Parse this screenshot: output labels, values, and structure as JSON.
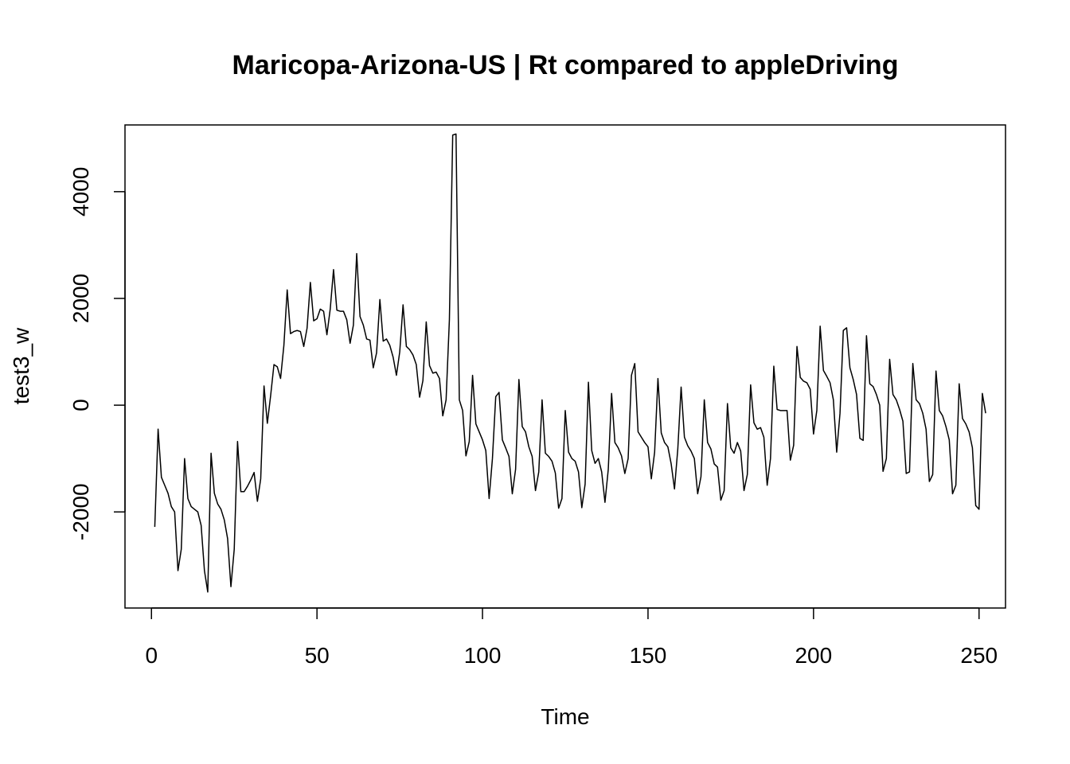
{
  "chart_data": {
    "type": "line",
    "title": "Maricopa-Arizona-US | Rt compared to appleDriving",
    "xlabel": "Time",
    "ylabel": "test3_w",
    "xlim": [
      -8,
      258
    ],
    "ylim": [
      -3800,
      5250
    ],
    "xticks": [
      0,
      50,
      100,
      150,
      200,
      250
    ],
    "yticks": [
      -2000,
      0,
      2000,
      4000
    ],
    "grid": false,
    "line_color": "#000000",
    "series": [
      {
        "x_start": 1,
        "x_step": 1,
        "values": [
          -2280,
          -450,
          -1350,
          -1500,
          -1650,
          -1900,
          -2000,
          -3100,
          -2700,
          -1000,
          -1750,
          -1900,
          -1950,
          -2000,
          -2250,
          -3100,
          -3500,
          -900,
          -1650,
          -1850,
          -1950,
          -2150,
          -2500,
          -3400,
          -2700,
          -680,
          -1620,
          -1620,
          -1520,
          -1400,
          -1260,
          -1800,
          -1380,
          360,
          -340,
          180,
          760,
          720,
          500,
          1120,
          2160,
          1340,
          1380,
          1400,
          1380,
          1100,
          1440,
          2300,
          1580,
          1620,
          1800,
          1760,
          1320,
          1800,
          2540,
          1780,
          1760,
          1760,
          1600,
          1160,
          1500,
          2840,
          1660,
          1500,
          1240,
          1220,
          700,
          980,
          1980,
          1200,
          1240,
          1120,
          900,
          560,
          1000,
          1880,
          1100,
          1040,
          940,
          760,
          150,
          460,
          1560,
          740,
          600,
          620,
          500,
          -200,
          100,
          1600,
          5060,
          5080,
          100,
          -100,
          -950,
          -680,
          560,
          -350,
          -500,
          -650,
          -850,
          -1750,
          -1000,
          160,
          240,
          -650,
          -800,
          -960,
          -1660,
          -1200,
          480,
          -400,
          -500,
          -780,
          -960,
          -1600,
          -1250,
          100,
          -900,
          -960,
          -1050,
          -1270,
          -1930,
          -1750,
          -100,
          -880,
          -1000,
          -1050,
          -1250,
          -1920,
          -1480,
          430,
          -850,
          -1090,
          -1000,
          -1250,
          -1820,
          -1200,
          220,
          -700,
          -800,
          -950,
          -1280,
          -1000,
          560,
          780,
          -500,
          -600,
          -700,
          -780,
          -1380,
          -880,
          500,
          -520,
          -700,
          -780,
          -1100,
          -1570,
          -820,
          340,
          -600,
          -760,
          -860,
          -1000,
          -1660,
          -1340,
          100,
          -700,
          -820,
          -1100,
          -1160,
          -1780,
          -1600,
          30,
          -800,
          -900,
          -700,
          -860,
          -1600,
          -1300,
          380,
          -330,
          -450,
          -420,
          -600,
          -1500,
          -1000,
          730,
          -80,
          -100,
          -100,
          -100,
          -1030,
          -750,
          1100,
          520,
          450,
          420,
          300,
          -540,
          -100,
          1480,
          650,
          540,
          420,
          100,
          -880,
          -150,
          1400,
          1450,
          700,
          480,
          200,
          -620,
          -660,
          1300,
          400,
          350,
          200,
          0,
          -1240,
          -1000,
          860,
          200,
          100,
          -80,
          -300,
          -1280,
          -1250,
          780,
          100,
          30,
          -150,
          -450,
          -1430,
          -1300,
          640,
          -100,
          -200,
          -400,
          -650,
          -1660,
          -1500,
          400,
          -250,
          -350,
          -500,
          -800,
          -1880,
          -1950,
          220,
          -150
        ]
      }
    ]
  }
}
